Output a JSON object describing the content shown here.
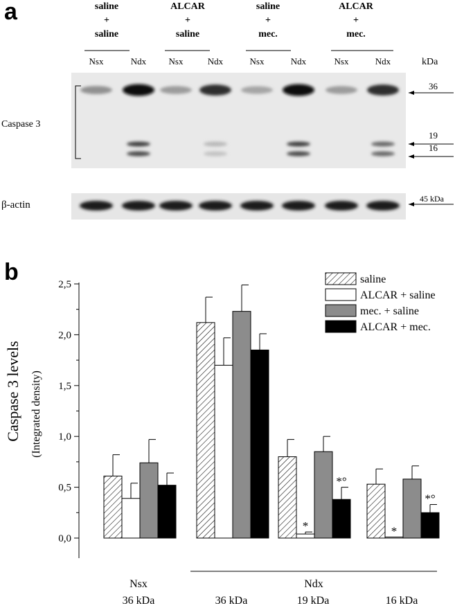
{
  "panel_a": {
    "letter": "a",
    "groups": [
      {
        "lines": [
          "saline",
          "+",
          "saline"
        ]
      },
      {
        "lines": [
          "ALCAR",
          "+",
          "saline"
        ]
      },
      {
        "lines": [
          "saline",
          "+",
          "mec."
        ]
      },
      {
        "lines": [
          "ALCAR",
          "+",
          "mec."
        ]
      }
    ],
    "lane_labels": [
      "Nsx",
      "Ndx",
      "Nsx",
      "Ndx",
      "Nsx",
      "Ndx",
      "Nsx",
      "Ndx"
    ],
    "unit_header": "kDa",
    "protein_label": "Caspase 3",
    "loading_label": "β-actin",
    "band_markers": [
      "36",
      "19",
      "16"
    ],
    "actin_marker": "45 kDa",
    "caspase36_intensity": [
      0.35,
      1.0,
      0.3,
      0.85,
      0.25,
      1.0,
      0.3,
      0.85
    ],
    "caspase19_intensity": [
      0,
      0.75,
      0,
      0.15,
      0,
      0.75,
      0,
      0.55
    ],
    "caspase16_intensity": [
      0,
      0.7,
      0,
      0.1,
      0,
      0.7,
      0,
      0.55
    ]
  },
  "panel_b": {
    "letter": "b"
  },
  "chart_data": {
    "type": "bar",
    "ylabel": "Caspase 3 levels",
    "ylabel_sub": "(Integrated density)",
    "ylim": [
      0,
      2.5
    ],
    "yticks": [
      "0,0",
      "0,5",
      "1,0",
      "1,5",
      "2,0",
      "2,5"
    ],
    "legend_position": "top-right",
    "categories": [
      "Nsx 36 kDa",
      "Ndx 36 kDa",
      "Ndx 19 kDa",
      "Ndx 16 kDa"
    ],
    "x_labels": {
      "nsx_top": "Nsx",
      "nsx_bottom": "36 kDa",
      "ndx_top": "Ndx",
      "ndx_sub": [
        "36 kDa",
        "19 kDa",
        "16 kDa"
      ]
    },
    "series": [
      {
        "name": "saline",
        "fill": "hatch",
        "values": [
          0.61,
          2.12,
          0.8,
          0.53
        ],
        "errors": [
          0.21,
          0.25,
          0.17,
          0.15
        ]
      },
      {
        "name": "ALCAR + saline",
        "fill": "#ffffff",
        "values": [
          0.39,
          1.7,
          0.04,
          0.01
        ],
        "errors": [
          0.15,
          0.27,
          0.02,
          0.0
        ]
      },
      {
        "name": "mec. + saline",
        "fill": "#8c8c8c",
        "values": [
          0.74,
          2.23,
          0.85,
          0.58
        ],
        "errors": [
          0.23,
          0.26,
          0.15,
          0.13
        ]
      },
      {
        "name": "ALCAR + mec.",
        "fill": "#000000",
        "values": [
          0.52,
          1.85,
          0.38,
          0.25
        ],
        "errors": [
          0.12,
          0.16,
          0.12,
          0.08
        ]
      }
    ],
    "annotations": [
      {
        "category": 2,
        "series": 1,
        "text": "*"
      },
      {
        "category": 2,
        "series": 3,
        "text": "*°"
      },
      {
        "category": 3,
        "series": 1,
        "text": "*"
      },
      {
        "category": 3,
        "series": 3,
        "text": "*°"
      }
    ]
  }
}
